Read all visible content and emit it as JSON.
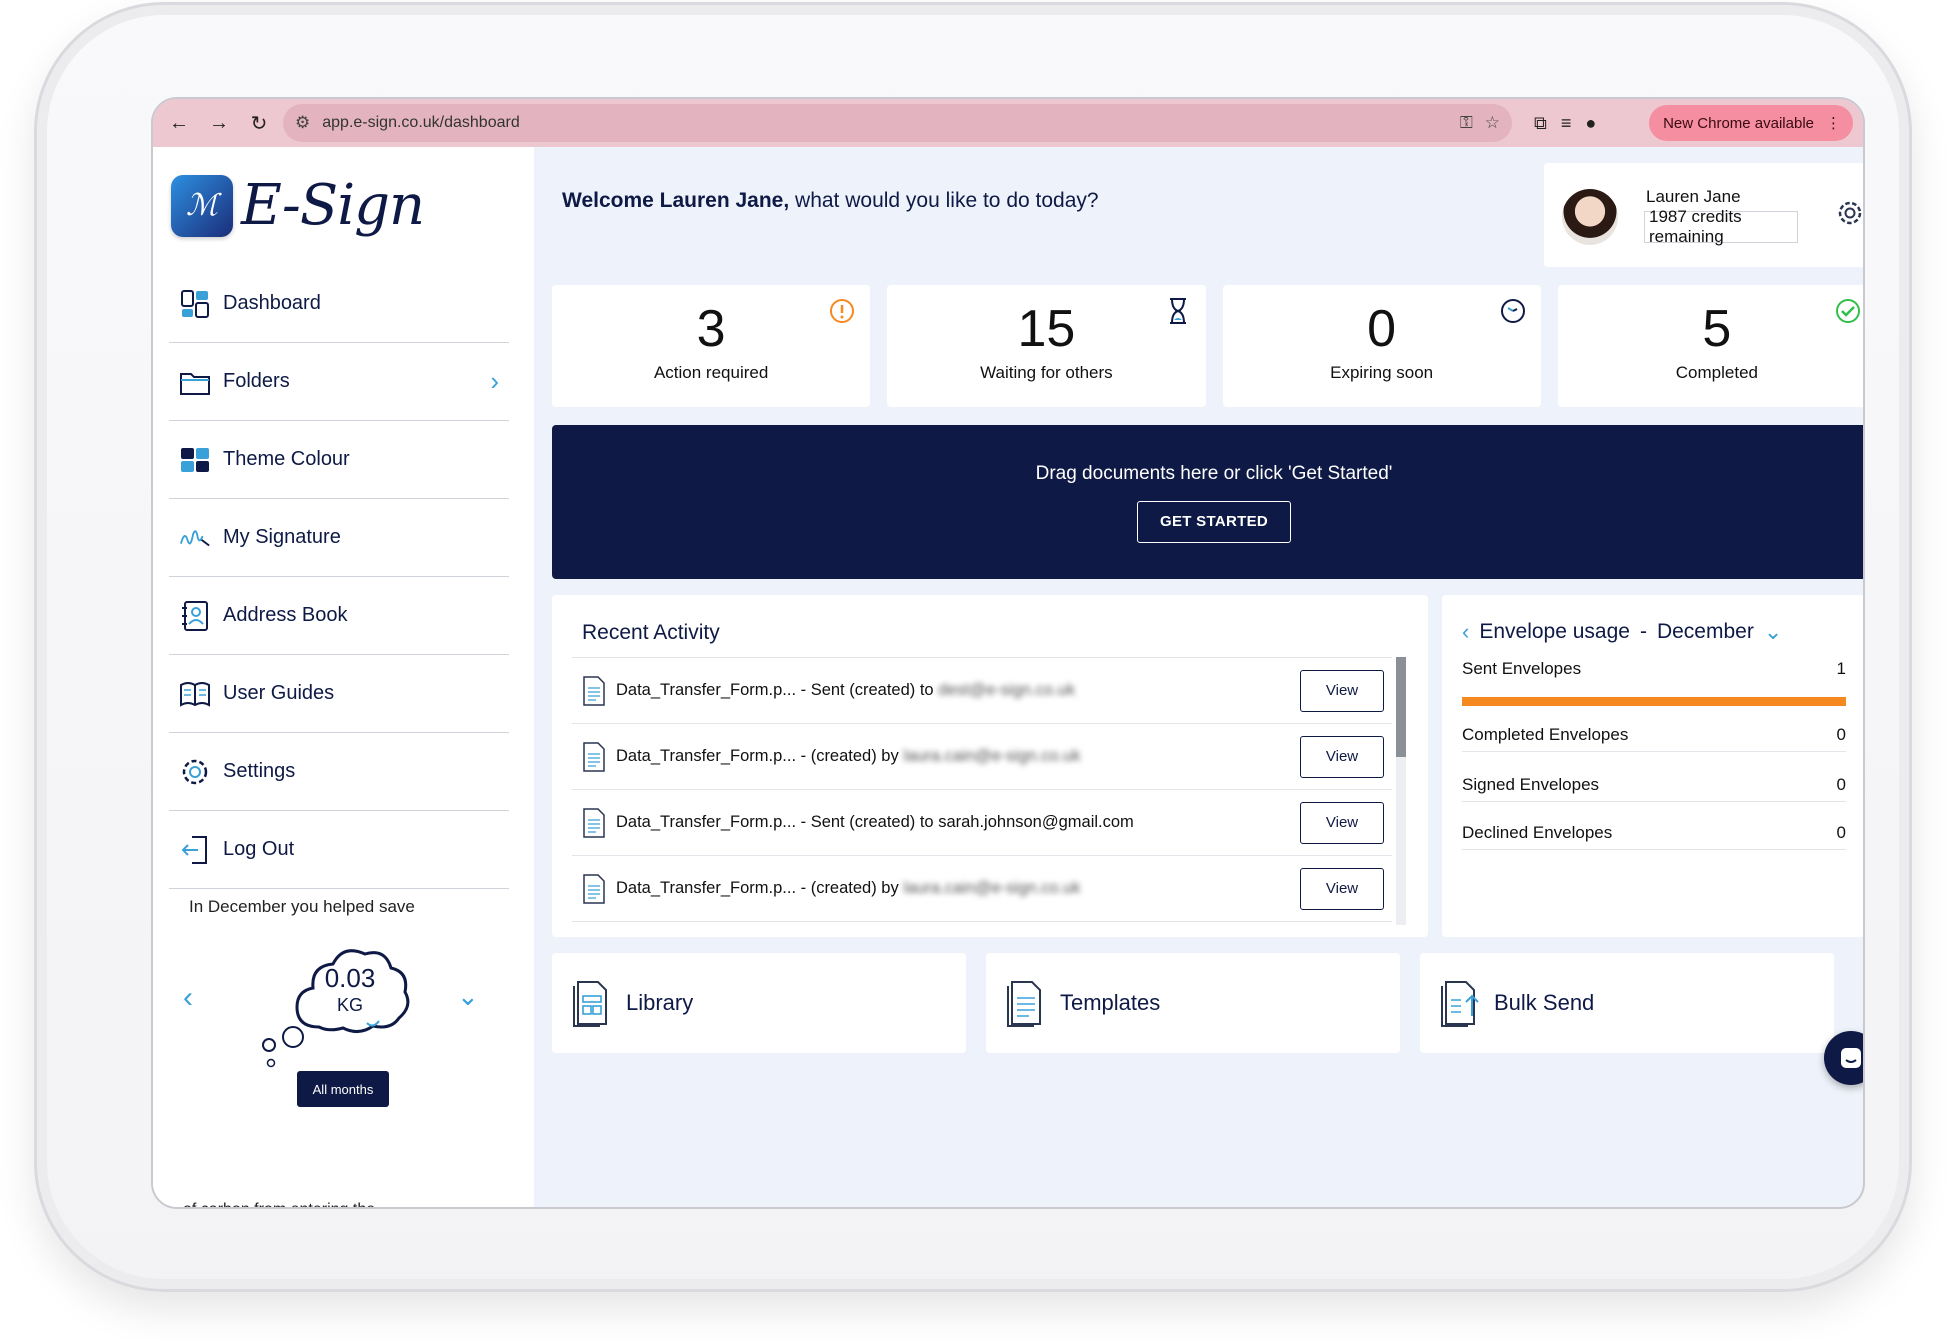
{
  "browser": {
    "url": "app.e-sign.co.uk/dashboard",
    "update_label": "New Chrome available"
  },
  "brand": {
    "name": "E-Sign"
  },
  "sidebar": {
    "items": [
      {
        "label": "Dashboard",
        "icon": "dashboard-icon"
      },
      {
        "label": "Folders",
        "icon": "folder-icon",
        "has_chevron": true
      },
      {
        "label": "Theme Colour",
        "icon": "palette-icon"
      },
      {
        "label": "My Signature",
        "icon": "signature-icon"
      },
      {
        "label": "Address Book",
        "icon": "address-book-icon"
      },
      {
        "label": "User Guides",
        "icon": "book-icon"
      },
      {
        "label": "Settings",
        "icon": "gear-icon"
      },
      {
        "label": "Log Out",
        "icon": "logout-icon"
      }
    ]
  },
  "carbon": {
    "heading": "In December you helped save",
    "value": "0.03",
    "unit": "KG",
    "all_months": "All months",
    "tail": "of carbon from entering the"
  },
  "welcome": {
    "bold": "Welcome Lauren Jane,",
    "rest": " what would you like to do today?"
  },
  "profile": {
    "name": "Lauren Jane",
    "credits": "1987 credits remaining"
  },
  "stats": [
    {
      "value": "3",
      "label": "Action required",
      "icon": "alert-circle-icon",
      "color": "#f5891f"
    },
    {
      "value": "15",
      "label": "Waiting for others",
      "icon": "hourglass-icon",
      "color": "#0e1a45"
    },
    {
      "value": "0",
      "label": "Expiring soon",
      "icon": "clock-icon",
      "color": "#0e1a45"
    },
    {
      "value": "5",
      "label": "Completed",
      "icon": "check-circle-icon",
      "color": "#2fbf4a"
    }
  ],
  "dropzone": {
    "text": "Drag documents here or click 'Get Started'",
    "button": "GET STARTED"
  },
  "activity": {
    "title": "Recent Activity",
    "view_label": "View",
    "rows": [
      {
        "prefix": "Data_Transfer_Form.p... - Sent (created) to ",
        "party": "dest@e-sign.co.uk",
        "blurred": true
      },
      {
        "prefix": "Data_Transfer_Form.p... - (created) by ",
        "party": "laura.cain@e-sign.co.uk",
        "blurred": true
      },
      {
        "prefix": "Data_Transfer_Form.p... - Sent (created) to ",
        "party": "sarah.johnson@gmail.com",
        "blurred": false
      },
      {
        "prefix": "Data_Transfer_Form.p... - (created) by ",
        "party": "laura.cain@e-sign.co.uk",
        "blurred": true
      }
    ]
  },
  "usage": {
    "title": "Envelope usage",
    "separator": "-",
    "month": "December",
    "rows": [
      {
        "label": "Sent Envelopes",
        "value": "1"
      },
      {
        "label": "Completed Envelopes",
        "value": "0"
      },
      {
        "label": "Signed Envelopes",
        "value": "0"
      },
      {
        "label": "Declined Envelopes",
        "value": "0"
      }
    ],
    "accent": "#f5891f"
  },
  "shortcuts": [
    {
      "label": "Library",
      "icon": "library-icon"
    },
    {
      "label": "Templates",
      "icon": "template-icon"
    },
    {
      "label": "Bulk Send",
      "icon": "bulk-send-icon"
    }
  ]
}
